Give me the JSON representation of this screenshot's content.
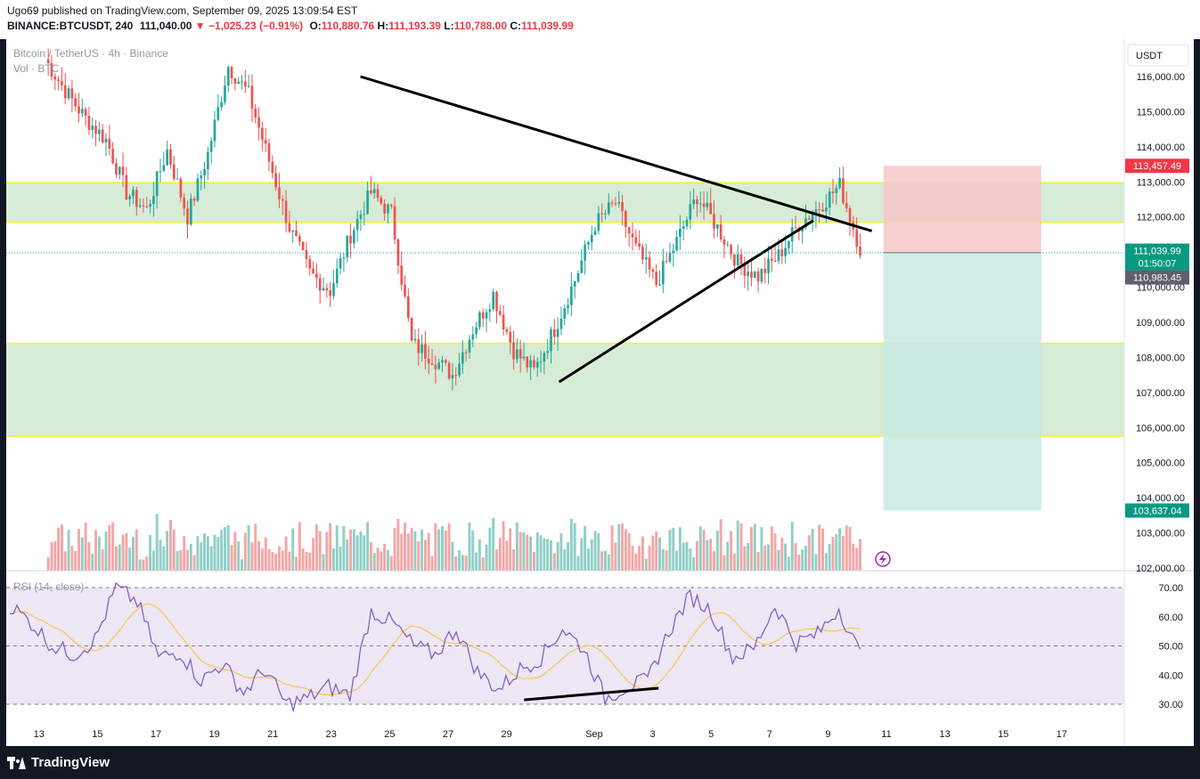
{
  "header": {
    "publisher": "Ugo69 published on TradingView.com, September 09, 2025 13:09:54 EST",
    "symbol": "BINANCE:BTCUSDT, 240",
    "last": "111,040.00",
    "change_arrow": "▼",
    "change": "−1,025.23 (−0.91%)",
    "o_label": "O:",
    "open": "110,880.76",
    "h_label": "H:",
    "high": "111,193.39",
    "l_label": "L:",
    "low": "110,788.00",
    "c_label": "C:",
    "close": "111,039.99"
  },
  "legend": {
    "title": "Bitcoin / TetherUS · 4h · Binance",
    "volume": "Vol · BTC",
    "rsi": "RSI (14, close)"
  },
  "footer": {
    "brand": "TradingView"
  },
  "colors": {
    "up": "#26a69a",
    "down": "#ef5350",
    "vol_up": "#8fcfc6",
    "vol_down": "#f3a6a6",
    "zone_fill": "#d6ecd6",
    "zone_line": "#f5ef3a",
    "rsi_line": "#7e57c2",
    "rsi_ma": "#f5c84c",
    "rsi_band": "#ede7f6",
    "stop_zone": "#f8c8c8",
    "target_zone": "#c8e9e2"
  },
  "chart_data": {
    "type": "candlestick",
    "currency_label": "USDT",
    "price_axis": {
      "ticks": [
        116000,
        115000,
        114000,
        113000,
        112000,
        111000,
        110000,
        109000,
        108000,
        107000,
        106000,
        105000,
        104000,
        103000,
        102000
      ],
      "tick_labels": [
        "116,000.00",
        "115,000.00",
        "114,000.00",
        "113,000.00",
        "112,000.00",
        "111,000.00",
        "110,000.00",
        "109,000.00",
        "108,000.00",
        "107,000.00",
        "106,000.00",
        "105,000.00",
        "104,000.00",
        "103,000.00",
        "102,000.00"
      ]
    },
    "price_badges": {
      "stop": "113,457.49",
      "last": "111,039.99",
      "countdown": "01:50:07",
      "entry": "110,983.45",
      "target": "103,637.04"
    },
    "x_ticks": [
      "11",
      "13",
      "15",
      "17",
      "19",
      "21",
      "23",
      "25",
      "27",
      "29",
      "Sep",
      "3",
      "5",
      "7",
      "9",
      "11",
      "13",
      "15",
      "17"
    ],
    "key_closes": [
      116500,
      115600,
      114800,
      114200,
      112700,
      112200,
      113900,
      112000,
      113800,
      116300,
      115500,
      113600,
      111700,
      110400,
      109900,
      111500,
      112700,
      112100,
      108400,
      108000,
      107500,
      108800,
      109800,
      108200,
      107600,
      108800,
      110200,
      111800,
      112400,
      111100,
      110100,
      111300,
      112600,
      111700,
      110700,
      110300,
      110900,
      111800,
      112300,
      112900,
      111100
    ],
    "zones": [
      {
        "from": 111850,
        "to": 112980
      },
      {
        "from": 105750,
        "to": 108400
      }
    ],
    "trendlines": [
      {
        "points": [
          [
            23,
            116000
          ],
          [
            40.5,
            111600
          ]
        ]
      },
      {
        "points": [
          [
            29.8,
            107300
          ],
          [
            38.5,
            111900
          ]
        ]
      }
    ],
    "position": {
      "side": "short",
      "entry": 110983.45,
      "stop": 113457.49,
      "target": 103637.04
    },
    "rsi": {
      "levels": [
        70,
        50,
        30
      ],
      "tick_labels": [
        "70.00",
        "60.00",
        "50.00",
        "40.00",
        "30.00"
      ],
      "key_values": [
        64,
        58,
        50,
        47,
        52,
        70,
        65,
        46,
        48,
        38,
        44,
        34,
        42,
        30,
        32,
        36,
        33,
        62,
        58,
        50,
        47,
        56,
        41,
        35,
        42,
        46,
        56,
        49,
        32,
        36,
        38,
        55,
        67,
        62,
        46,
        49,
        64,
        51,
        54,
        63,
        47
      ],
      "divergence_line": [
        [
          28.6,
          31.5
        ],
        [
          33.2,
          35.5
        ]
      ]
    }
  }
}
